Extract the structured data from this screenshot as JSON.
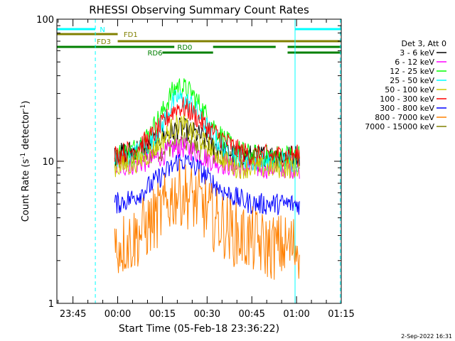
{
  "chart_data": {
    "type": "line",
    "title": "RHESSI Observing Summary Count Rates",
    "xlabel": "Start Time (05-Feb-18 23:36:22)",
    "ylabel": "Count Rate (s⁻¹ detector⁻¹)",
    "ylabel_base": "Count Rate (s",
    "ylabel_exp1": "-1",
    "ylabel_mid": " detector",
    "ylabel_exp2": "-1",
    "ylabel_end": ")",
    "y_scale": "log",
    "ylim": [
      1,
      100
    ],
    "xlim_minutes": [
      -20.4,
      75
    ],
    "y_tick_labels": [
      "1",
      "10",
      "100"
    ],
    "x_ticks": [
      {
        "label": "23:45",
        "minute": -15
      },
      {
        "label": "00:00",
        "minute": 0
      },
      {
        "label": "00:15",
        "minute": 15
      },
      {
        "label": "00:30",
        "minute": 30
      },
      {
        "label": "00:45",
        "minute": 45
      },
      {
        "label": "01:00",
        "minute": 60
      },
      {
        "label": "01:15",
        "minute": 75
      }
    ],
    "timestamp": "2-Sep-2022 16:31",
    "legend": {
      "header": "Det 3, Att 0",
      "placement": "right",
      "entries": [
        {
          "label": "3 - 6 keV",
          "color": "#000000"
        },
        {
          "label": "6 - 12 keV",
          "color": "#ff00ff"
        },
        {
          "label": "12 - 25 keV",
          "color": "#00ff00"
        },
        {
          "label": "25 - 50 keV",
          "color": "#00ffff"
        },
        {
          "label": "50 - 100 keV",
          "color": "#cccc00"
        },
        {
          "label": "100 - 300 keV",
          "color": "#ff0000"
        },
        {
          "label": "300 - 800 keV",
          "color": "#0000ff"
        },
        {
          "label": "800 - 7000 keV",
          "color": "#ff8000"
        },
        {
          "label": "7000 - 15000 keV",
          "color": "#808000"
        }
      ]
    },
    "flags": [
      {
        "label": "N",
        "color": "#00ffff",
        "row": 1,
        "segments": [
          [
            -20.4,
            -7.5
          ],
          [
            59.5,
            75
          ]
        ]
      },
      {
        "label": "FD1",
        "color": "#808000",
        "row": 2,
        "segments": [
          [
            -20.4,
            0
          ]
        ]
      },
      {
        "label": "FD3",
        "color": "#808000",
        "row": 3,
        "segments": [
          [
            0,
            75
          ]
        ]
      },
      {
        "label": "RD0",
        "color": "#008000",
        "row": 4,
        "segments": [
          [
            -20.4,
            19
          ],
          [
            32,
            53
          ],
          [
            57,
            75
          ]
        ]
      },
      {
        "label": "RD6",
        "color": "#008000",
        "row": 5,
        "segments": [
          [
            15,
            32
          ],
          [
            57,
            75
          ]
        ]
      }
    ],
    "flag_label_minutes": {
      "N": -6,
      "FD1": 2,
      "FD3": -7,
      "RD0": 20,
      "RD6": 10
    },
    "vlines": [
      {
        "minute": -20.4,
        "color": "#00ffff",
        "style": "solid"
      },
      {
        "minute": -7.5,
        "color": "#00ffff",
        "style": "dashed"
      },
      {
        "minute": 59.5,
        "color": "#00ffff",
        "style": "solid"
      },
      {
        "minute": 74.7,
        "color": "#00ffff",
        "style": "dashed"
      }
    ],
    "data_window_minutes": [
      -1,
      61
    ],
    "series": [
      {
        "name": "3 - 6 keV",
        "color": "#000000",
        "x": [
          -1,
          5,
          10,
          15,
          18,
          20,
          22,
          25,
          28,
          32,
          36,
          40,
          45,
          50,
          55,
          61
        ],
        "y": [
          11,
          12,
          13,
          15,
          16,
          17,
          17,
          16,
          15,
          13,
          12,
          11,
          11,
          11,
          11,
          11
        ]
      },
      {
        "name": "6 - 12 keV",
        "color": "#ff00ff",
        "x": [
          -1,
          5,
          10,
          15,
          18,
          20,
          22,
          25,
          28,
          32,
          36,
          40,
          45,
          50,
          55,
          61
        ],
        "y": [
          9,
          9.5,
          10,
          11,
          12,
          12.5,
          12.5,
          12,
          11,
          10,
          9.5,
          9,
          9,
          9,
          9,
          9
        ]
      },
      {
        "name": "12 - 25 keV",
        "color": "#00ff00",
        "x": [
          -1,
          5,
          10,
          15,
          18,
          20,
          22,
          25,
          28,
          32,
          36,
          40,
          45,
          50,
          55,
          61
        ],
        "y": [
          11,
          12,
          15,
          22,
          30,
          34,
          33,
          30,
          24,
          18,
          14,
          12,
          11,
          11,
          11,
          11
        ]
      },
      {
        "name": "25 - 50 keV",
        "color": "#00ffff",
        "x": [
          -1,
          5,
          10,
          15,
          18,
          20,
          22,
          25,
          28,
          32,
          36,
          40,
          45,
          50,
          55,
          61
        ],
        "y": [
          10,
          11,
          13,
          18,
          25,
          28,
          27,
          25,
          20,
          15,
          12,
          11,
          10,
          10,
          10,
          10
        ]
      },
      {
        "name": "50 - 100 keV",
        "color": "#cccc00",
        "x": [
          -1,
          5,
          10,
          15,
          18,
          20,
          22,
          25,
          28,
          32,
          36,
          40,
          45,
          50,
          55,
          61
        ],
        "y": [
          9,
          9.5,
          11,
          14,
          17,
          18,
          18,
          16,
          14,
          12,
          10,
          9,
          9,
          9,
          9,
          9
        ]
      },
      {
        "name": "100 - 300 keV",
        "color": "#ff0000",
        "x": [
          -1,
          5,
          10,
          15,
          18,
          20,
          22,
          25,
          28,
          32,
          36,
          40,
          45,
          50,
          55,
          61
        ],
        "y": [
          11,
          12,
          14,
          18,
          22,
          24,
          24,
          22,
          19,
          16,
          14,
          12,
          11,
          11,
          11,
          11
        ]
      },
      {
        "name": "300 - 800 keV",
        "color": "#0000ff",
        "x": [
          -1,
          5,
          10,
          15,
          18,
          20,
          22,
          25,
          28,
          32,
          36,
          40,
          45,
          50,
          55,
          61
        ],
        "y": [
          5,
          5.5,
          6.5,
          8,
          9,
          10,
          10,
          9.5,
          8.5,
          7,
          6,
          5.5,
          5,
          5,
          5,
          5
        ]
      },
      {
        "name": "800 - 7000 keV",
        "color": "#ff8000",
        "x": [
          -1,
          5,
          10,
          15,
          18,
          20,
          22,
          25,
          28,
          32,
          36,
          40,
          45,
          50,
          55,
          61
        ],
        "y": [
          2.5,
          2.8,
          3.5,
          4.5,
          5.5,
          6,
          6,
          5.5,
          5,
          4,
          3.5,
          3,
          2.8,
          2.5,
          2.5,
          2.5
        ]
      },
      {
        "name": "7000 - 15000 keV",
        "color": "#808000",
        "x": [
          -1,
          5,
          10,
          15,
          18,
          20,
          22,
          25,
          28,
          32,
          36,
          40,
          45,
          50,
          55,
          61
        ],
        "y": [
          10,
          10.5,
          11,
          12,
          13,
          13.5,
          13.5,
          13,
          12,
          11,
          10.5,
          10,
          10,
          10,
          10,
          10
        ]
      }
    ]
  }
}
